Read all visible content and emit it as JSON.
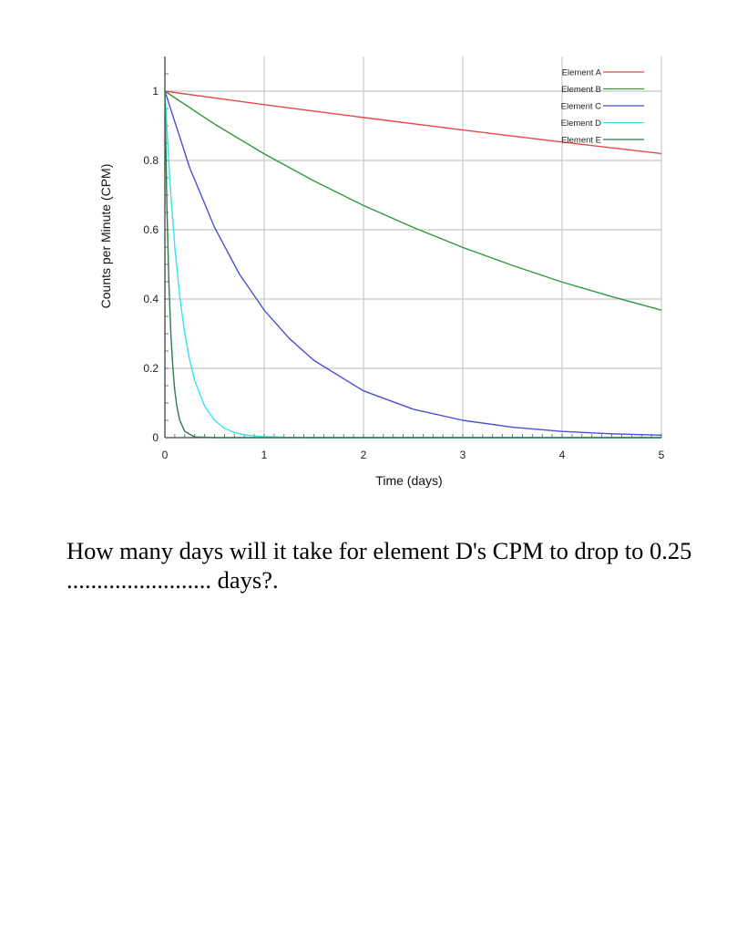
{
  "chart_data": {
    "type": "line",
    "xlabel": "Time (days)",
    "ylabel": "Counts per Minute (CPM)",
    "xlim": [
      0,
      5
    ],
    "ylim": [
      0,
      1.1
    ],
    "x_ticks": [
      "0",
      "1",
      "2",
      "3",
      "4",
      "5"
    ],
    "y_ticks": [
      "0",
      "0.2",
      "0.4",
      "0.6",
      "0.8",
      "1"
    ],
    "grid": true,
    "legend_position": "top-right",
    "series": [
      {
        "name": "Element A",
        "color": "#e34a4a",
        "x": [
          0,
          1,
          2,
          3,
          4,
          5
        ],
        "y": [
          1.0,
          0.961,
          0.924,
          0.888,
          0.853,
          0.82
        ]
      },
      {
        "name": "Element B",
        "color": "#2e9a3a",
        "x": [
          0,
          0.5,
          1,
          1.5,
          2,
          2.5,
          3,
          3.5,
          4,
          4.5,
          5
        ],
        "y": [
          1.0,
          0.905,
          0.819,
          0.741,
          0.67,
          0.607,
          0.549,
          0.497,
          0.449,
          0.407,
          0.368
        ]
      },
      {
        "name": "Element C",
        "color": "#4a4ed6",
        "x": [
          0,
          0.25,
          0.5,
          0.75,
          1,
          1.25,
          1.5,
          2,
          2.5,
          3,
          3.5,
          4,
          4.5,
          5
        ],
        "y": [
          1.0,
          0.779,
          0.607,
          0.472,
          0.368,
          0.287,
          0.223,
          0.135,
          0.082,
          0.05,
          0.03,
          0.018,
          0.011,
          0.007
        ]
      },
      {
        "name": "Element D",
        "color": "#34e3ee",
        "x": [
          0,
          0.05,
          0.1,
          0.15,
          0.2,
          0.25,
          0.3,
          0.4,
          0.5,
          0.6,
          0.7,
          0.8,
          0.9,
          1.0,
          1.2,
          1.5,
          2,
          3,
          4,
          5
        ],
        "y": [
          1.0,
          0.741,
          0.549,
          0.407,
          0.301,
          0.223,
          0.165,
          0.091,
          0.05,
          0.027,
          0.015,
          0.008,
          0.005,
          0.003,
          0.001,
          0.0,
          0.0,
          0.0,
          0.0,
          0.0
        ]
      },
      {
        "name": "Element E",
        "color": "#2d7b4a",
        "x": [
          0,
          0.02,
          0.04,
          0.06,
          0.08,
          0.1,
          0.12,
          0.15,
          0.2,
          0.3,
          0.5,
          1,
          2,
          3,
          4,
          5
        ],
        "y": [
          1.0,
          0.67,
          0.449,
          0.301,
          0.202,
          0.135,
          0.091,
          0.05,
          0.018,
          0.002,
          0.0,
          0.0,
          0.0,
          0.0,
          0.0,
          0.0
        ]
      }
    ]
  },
  "question": {
    "text": "How many days will it take for element D's CPM to drop to 0.25 ........................ days?."
  }
}
